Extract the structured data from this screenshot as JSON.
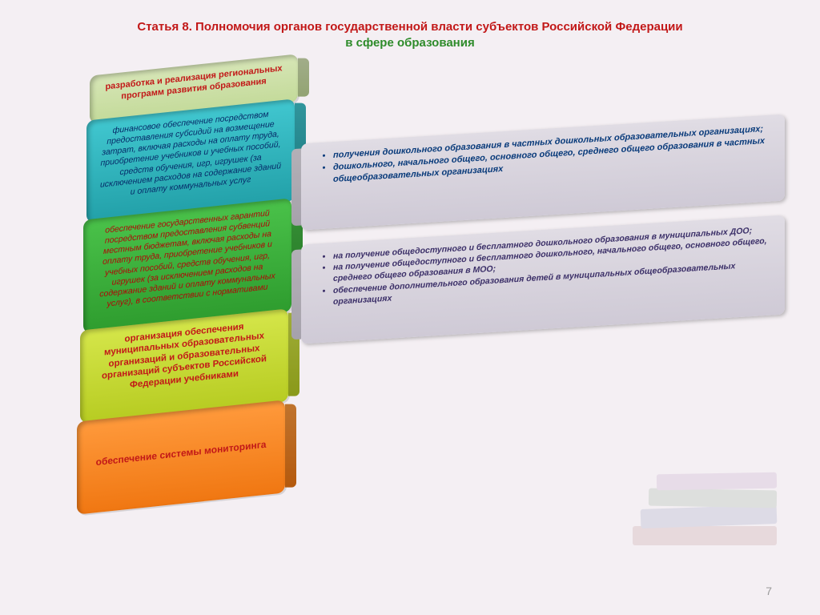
{
  "title": {
    "line1": "Статья 8. Полномочия органов государственной власти субъектов Российской Федерации",
    "line2": "в сфере образования"
  },
  "blocks": {
    "b1": "разработка и реализация региональных программ развития образования",
    "b2": "финансовое обеспечение посредством предоставления субсидий на возмещение затрат, включая расходы на оплату труда, приобретение учебников и учебных пособий, средств обучения, игр, игрушек (за исключением расходов на содержание зданий и оплату коммунальных услуг",
    "b3": "обеспечение государственных гарантий посредством предоставления субвенций местным бюджетам, включая расходы на оплату труда, приобретение учебников и учебных пособий, средств обучения, игр, игрушек (за исключением расходов на содержание зданий и оплату коммунальных услуг), в соответствии с нормативами",
    "b4": "организация обеспечения муниципальных образовательных организаций и образовательных организаций субъектов Российской Федерации учебниками",
    "b5": "обеспечение системы мониторинга"
  },
  "panel1": [
    "получения дошкольного образования в частных дошкольных образовательных организациях;",
    "дошкольного, начального общего, основного общего, среднего общего образования в частных общеобразовательных организациях"
  ],
  "panel2": [
    "на получение общедоступного и бесплатного дошкольного образования в муниципальных ДОО;",
    "на получение общедоступного и бесплатного дошкольного, начального общего, основного общего, среднего общего образования в МОО;",
    "обеспечение дополнительного образования детей в муниципальных общеобразовательных организациях"
  ],
  "page": "7",
  "colors": {
    "title_red": "#c21818",
    "title_green": "#2e8b2a",
    "panel_text": "#083a7a"
  }
}
